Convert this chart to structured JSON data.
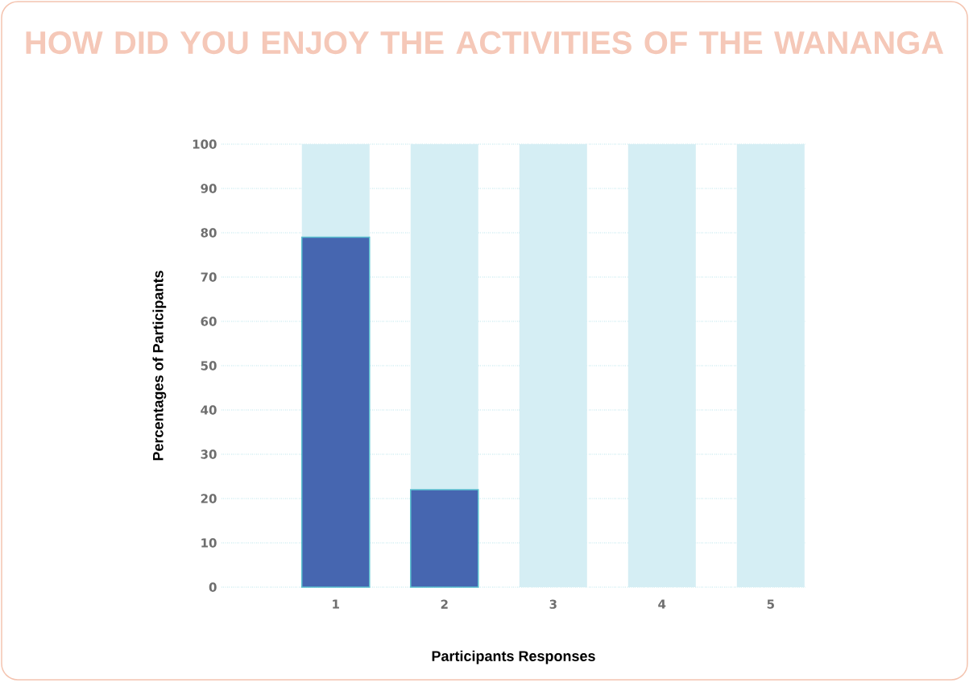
{
  "chart_data": {
    "type": "bar",
    "title": "HOW DID YOU ENJOY THE ACTIVITIES OF THE WANANGA",
    "xlabel": "Participants Responses",
    "ylabel": "Percentages of Participants",
    "categories": [
      "1",
      "2",
      "3",
      "4",
      "5"
    ],
    "series": [
      {
        "color": "#d5eef4",
        "values": [
          100,
          100,
          100,
          100,
          100
        ]
      },
      {
        "color": "#4666b0",
        "values": [
          79,
          22,
          null,
          null,
          null
        ]
      }
    ],
    "ylim": [
      0,
      100
    ],
    "yticks": [
      0,
      10,
      20,
      30,
      40,
      50,
      60,
      70,
      80,
      90,
      100
    ],
    "grid": "y"
  }
}
